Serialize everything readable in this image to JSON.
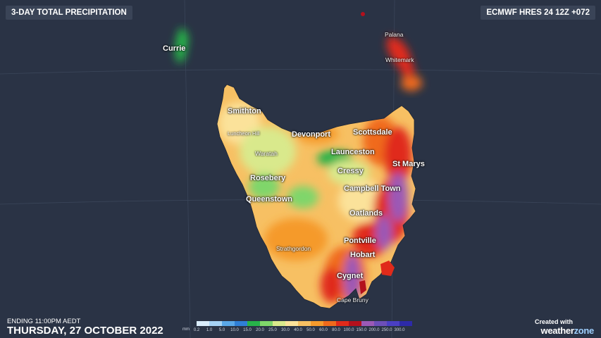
{
  "header": {
    "title": "3-DAY TOTAL PRECIPITATION",
    "model": "ECMWF HRES 24 12Z +072"
  },
  "footer": {
    "ending": "ENDING 11:00PM AEDT",
    "date": "THURSDAY, 27 OCTOBER 2022",
    "created_with": "Created with",
    "brand_main": "weather",
    "brand_accent": "zone"
  },
  "legend": {
    "unit": "mm",
    "bins": [
      {
        "label": "0.2",
        "color": "#d9ecfb"
      },
      {
        "label": "1.0",
        "color": "#a6d3f5"
      },
      {
        "label": "5.0",
        "color": "#5aa8e8"
      },
      {
        "label": "10.0",
        "color": "#2f7fd6"
      },
      {
        "label": "15.0",
        "color": "#27b24a"
      },
      {
        "label": "20.0",
        "color": "#7fd66a"
      },
      {
        "label": "25.0",
        "color": "#d9e98c"
      },
      {
        "label": "30.0",
        "color": "#fbe29a"
      },
      {
        "label": "40.0",
        "color": "#f7c063"
      },
      {
        "label": "50.0",
        "color": "#f59a2c"
      },
      {
        "label": "60.0",
        "color": "#f06a1c"
      },
      {
        "label": "80.0",
        "color": "#e02a1a"
      },
      {
        "label": "100.0",
        "color": "#b3101c"
      },
      {
        "label": "150.0",
        "color": "#9b59b6"
      },
      {
        "label": "200.0",
        "color": "#6c4fb8"
      },
      {
        "label": "250.0",
        "color": "#4a3fc4"
      },
      {
        "label": "300.0",
        "color": "#2d2aa8"
      }
    ]
  },
  "places": {
    "currie": "Currie",
    "palana": "Palana",
    "whitemark": "Whitemark",
    "smithton": "Smithton",
    "luncheon_hill": "Luncheon Hill",
    "devonport": "Devonport",
    "scottsdale": "Scottsdale",
    "waratah": "Waratah",
    "launceston": "Launceston",
    "st_marys": "St Marys",
    "cressy": "Cressy",
    "rosebery": "Rosebery",
    "campbell_town": "Campbell Town",
    "queenstown": "Queenstown",
    "oatlands": "Oatlands",
    "pontville": "Pontville",
    "strathgordon": "Strathgordon",
    "hobart": "Hobart",
    "cygnet": "Cygnet",
    "cape_bruny": "Cape Bruny"
  }
}
